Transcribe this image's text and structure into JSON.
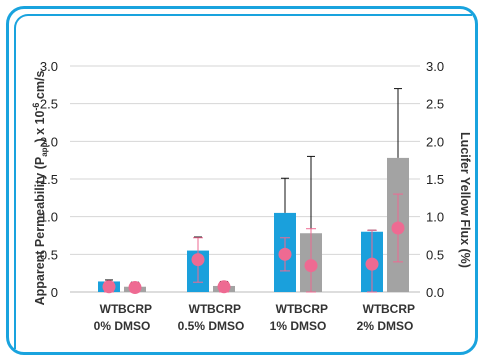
{
  "chart_data": {
    "type": "bar",
    "ylabel_left": "Apparent Permeability (P",
    "ylabel_left_sub": "app",
    "ylabel_left_tail": ") x 10",
    "ylabel_left_exp": "-6",
    "ylabel_left_unit": " cm/s",
    "ylabel_right": "Lucifer Yellow Flux (%)",
    "ylim": [
      0,
      3.0
    ],
    "yticks_left": [
      "0",
      "0.5",
      "1.0",
      "1.5",
      "2.0",
      "2.5",
      "3.0"
    ],
    "yticks_right": [
      "0.0",
      "0.5",
      "1.0",
      "1.5",
      "2.0",
      "2.5",
      "3.0"
    ],
    "groups": [
      {
        "bars": [
          "WT",
          "BCRP"
        ],
        "condition": "0% DMSO"
      },
      {
        "bars": [
          "WT",
          "BCRP"
        ],
        "condition": "0.5% DMSO"
      },
      {
        "bars": [
          "WT",
          "BCRP"
        ],
        "condition": "1% DMSO"
      },
      {
        "bars": [
          "WT",
          "BCRP"
        ],
        "condition": "2% DMSO"
      }
    ],
    "series": [
      {
        "name": "WT",
        "color": "#1aa0dc",
        "values": [
          0.14,
          0.55,
          1.05,
          0.8
        ],
        "err_upper": [
          0.16,
          0.73,
          1.51,
          0.82
        ]
      },
      {
        "name": "BCRP",
        "color": "#a3a3a3",
        "values": [
          0.07,
          0.08,
          0.78,
          1.78
        ],
        "err_upper": [
          0.13,
          0.14,
          1.8,
          2.7
        ]
      }
    ],
    "lucifer_yellow": {
      "color": "#ee6a92",
      "values": [
        0.07,
        0.06,
        0.43,
        0.07,
        0.5,
        0.35,
        0.37,
        0.85
      ],
      "err": [
        [
          0.0,
          0.13
        ],
        [
          0.0,
          0.12
        ],
        [
          0.13,
          0.72
        ],
        [
          0.0,
          0.13
        ],
        [
          0.28,
          0.72
        ],
        [
          0.0,
          0.84
        ],
        [
          0.0,
          0.82
        ],
        [
          0.4,
          1.3
        ]
      ]
    },
    "grid": true
  }
}
